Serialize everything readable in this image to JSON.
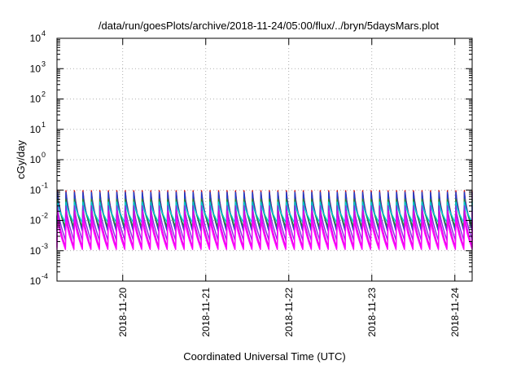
{
  "chart_data": {
    "type": "line",
    "title": "/data/run/goesPlots/archive/2018-11-24/05:00/flux/../bryn/5daysMars.plot",
    "xlabel": "Coordinated Universal Time (UTC)",
    "ylabel": "cGy/day",
    "yscale": "log",
    "ylim": [
      0.0001,
      10000
    ],
    "xlim": [
      "2018-11-19T05:00",
      "2018-11-24T05:00"
    ],
    "grid": true,
    "legend": "none",
    "y_ticks": [
      {
        "base": "10",
        "exp": "-4"
      },
      {
        "base": "10",
        "exp": "-3"
      },
      {
        "base": "10",
        "exp": "-2"
      },
      {
        "base": "10",
        "exp": "-1"
      },
      {
        "base": "10",
        "exp": "0"
      },
      {
        "base": "10",
        "exp": "1"
      },
      {
        "base": "10",
        "exp": "2"
      },
      {
        "base": "10",
        "exp": "3"
      },
      {
        "base": "10",
        "exp": "4"
      }
    ],
    "x_ticks": [
      "2018-11-20",
      "2018-11-21",
      "2018-11-22",
      "2018-11-23",
      "2018-11-24"
    ],
    "cycle_hours": 2.45,
    "series": [
      {
        "color": "#d40000",
        "peak": 0.095,
        "trough": 0.0045
      },
      {
        "color": "#1b3fd0",
        "peak": 0.085,
        "trough": 0.0045
      },
      {
        "color": "#2a8a2a",
        "peak": 0.05,
        "trough": 0.006
      },
      {
        "color": "#00c8d8",
        "peak": 0.04,
        "trough": 0.0085
      },
      {
        "color": "#8a2be2",
        "peak": 0.03,
        "trough": 0.0022
      },
      {
        "color": "#e600e6",
        "peak": 0.02,
        "trough": 0.0013
      },
      {
        "color": "#ff00ff",
        "peak": 0.012,
        "trough": 0.0011
      }
    ]
  }
}
